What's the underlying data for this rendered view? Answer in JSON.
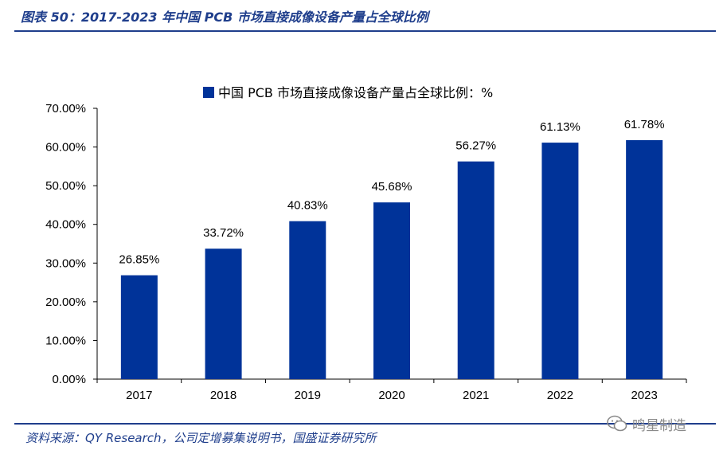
{
  "figure": {
    "title": "图表 50：2017-2023 年中国 PCB 市场直接成像设备产量占全球比例",
    "source": "资料来源：QY Research，公司定增募集说明书，国盛证券研究所",
    "watermark": "鸣星制造",
    "accent_color": "#1f3e8c"
  },
  "chart_data": {
    "type": "bar",
    "title": "",
    "xlabel": "",
    "ylabel": "",
    "categories": [
      "2017",
      "2018",
      "2019",
      "2020",
      "2021",
      "2022",
      "2023"
    ],
    "series": [
      {
        "name": "中国 PCB 市场直接成像设备产量占全球比例：%",
        "values": [
          26.85,
          33.72,
          40.83,
          45.68,
          56.27,
          61.13,
          61.78
        ],
        "labels": [
          "26.85%",
          "33.72%",
          "40.83%",
          "45.68%",
          "56.27%",
          "61.13%",
          "61.78%"
        ],
        "color": "#003399"
      }
    ],
    "ylim": [
      0,
      70
    ],
    "yticks": [
      0,
      10,
      20,
      30,
      40,
      50,
      60,
      70
    ],
    "ytick_labels": [
      "0.00%",
      "10.00%",
      "20.00%",
      "30.00%",
      "40.00%",
      "50.00%",
      "60.00%",
      "70.00%"
    ],
    "grid": false,
    "legend_position": "top"
  }
}
